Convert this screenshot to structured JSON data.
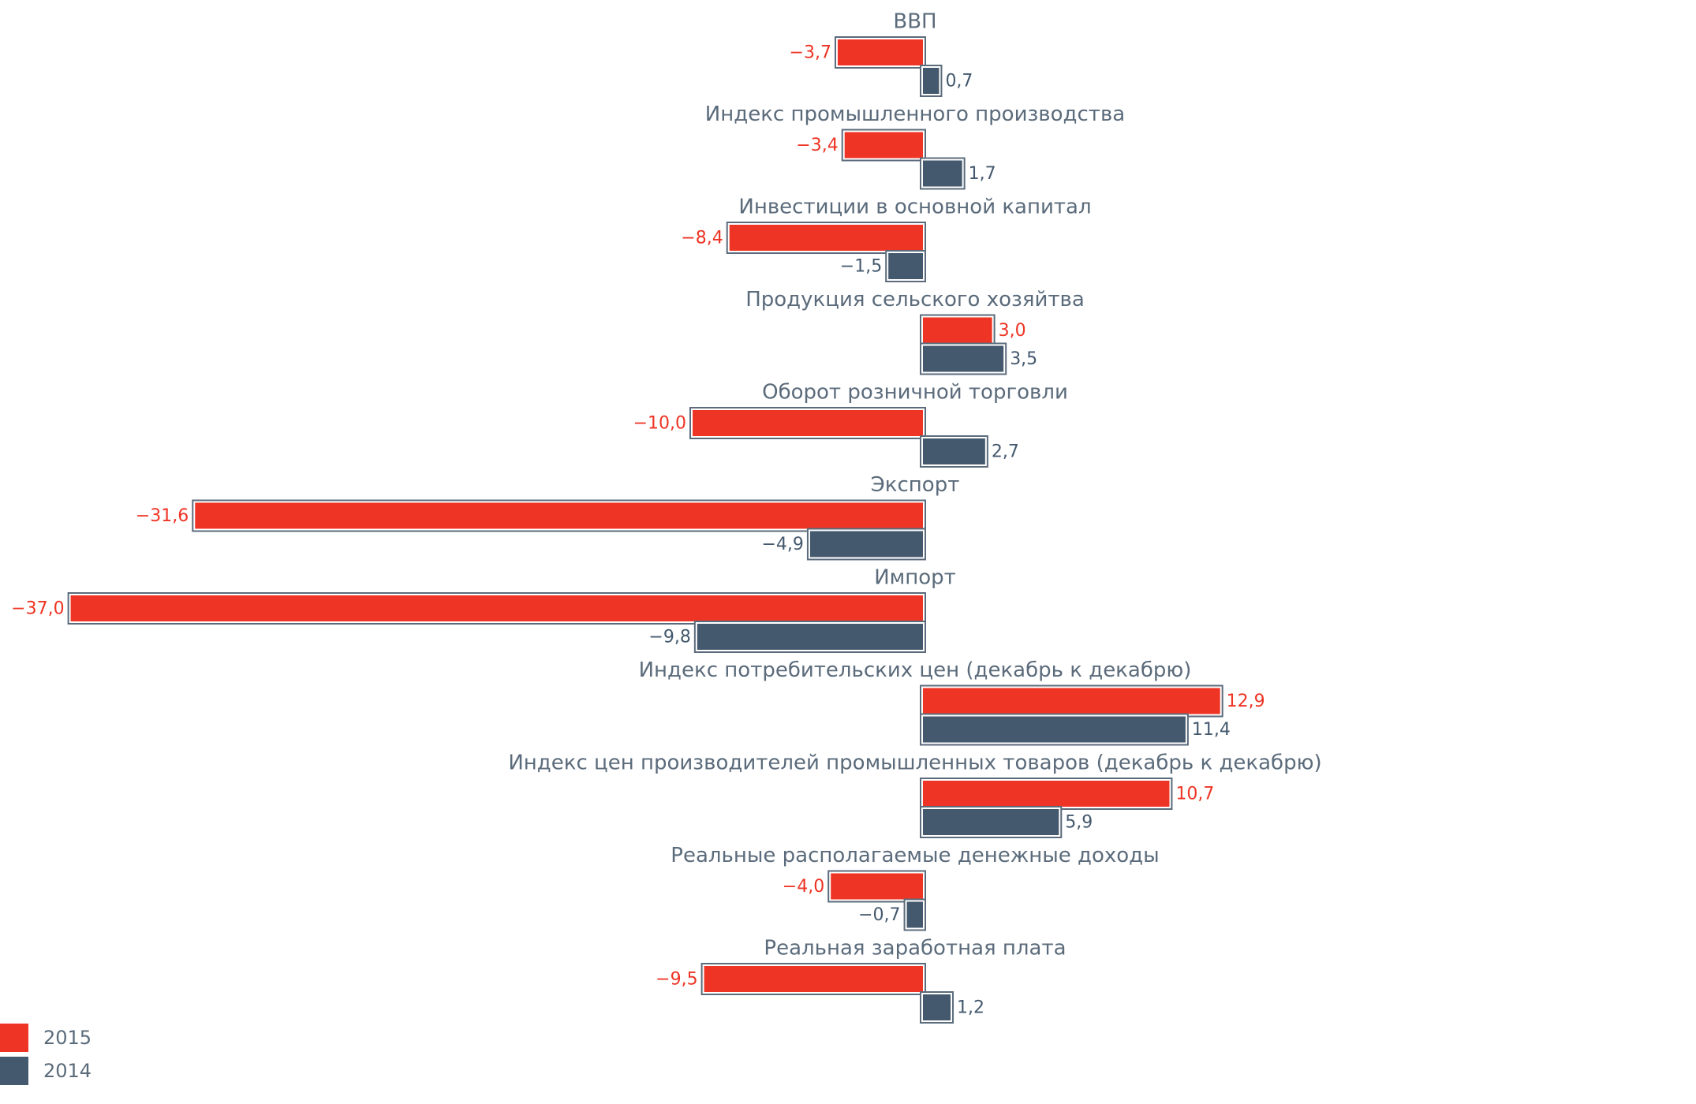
{
  "colors": {
    "2015": "#ee3424",
    "2014": "#44596e",
    "frame": "#5b6b7b"
  },
  "legend": [
    {
      "name": "2015",
      "color": "#ee3424"
    },
    {
      "name": "2014",
      "color": "#44596e"
    }
  ],
  "chart_data": {
    "type": "bar",
    "orientation": "horizontal",
    "categories": [
      "ВВП",
      "Индекс промышленного производства",
      "Инвестиции в основной капитал",
      "Продукция сельского хозяйтва",
      "Оборот розничной торговли",
      "Экспорт",
      "Импорт",
      "Индекс потребительских цен  (декабрь к декабрю)",
      "Индекс цен производителей промышленных товаров (декабрь к декабрю)",
      "Реальные располагаемые денежные доходы",
      "Реальная заработная плата"
    ],
    "series": [
      {
        "name": "2015",
        "color": "#ee3424",
        "values": [
          -3.7,
          -3.4,
          -8.4,
          3.0,
          -10.0,
          -31.6,
          -37.0,
          12.9,
          10.7,
          -4.0,
          -9.5
        ],
        "labels": [
          "−3,7",
          "−3,4",
          "−8,4",
          "3,0",
          "−10,0",
          "−31,6",
          "−37,0",
          "12,9",
          "10,7",
          "−4,0",
          "−9,5"
        ]
      },
      {
        "name": "2014",
        "color": "#44596e",
        "values": [
          0.7,
          1.7,
          -1.5,
          3.5,
          2.7,
          -4.9,
          -9.8,
          11.4,
          5.9,
          -0.7,
          1.2
        ],
        "labels": [
          "0,7",
          "1,7",
          "−1,5",
          "3,5",
          "2,7",
          "−4,9",
          "−9,8",
          "11,4",
          "5,9",
          "−0,7",
          "1,2"
        ]
      }
    ],
    "legend_position": "bottom-left",
    "grid": false
  }
}
